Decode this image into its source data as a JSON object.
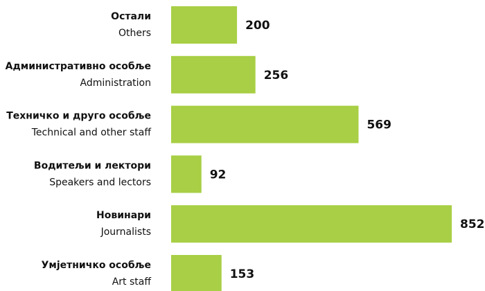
{
  "chart_data": {
    "type": "bar",
    "orientation": "horizontal",
    "categories": [
      "Остали",
      "Административно особље",
      "Техничко и друго особље",
      "Водитељи и лектори",
      "Новинари",
      "Умјетничко особље"
    ],
    "subcategories": [
      "Others",
      "Administration",
      "Technical and other staff",
      "Speakers and lectors",
      "Journalists",
      "Art staff"
    ],
    "values": [
      200,
      256,
      569,
      92,
      852,
      153
    ],
    "color": "#a8cf45"
  }
}
